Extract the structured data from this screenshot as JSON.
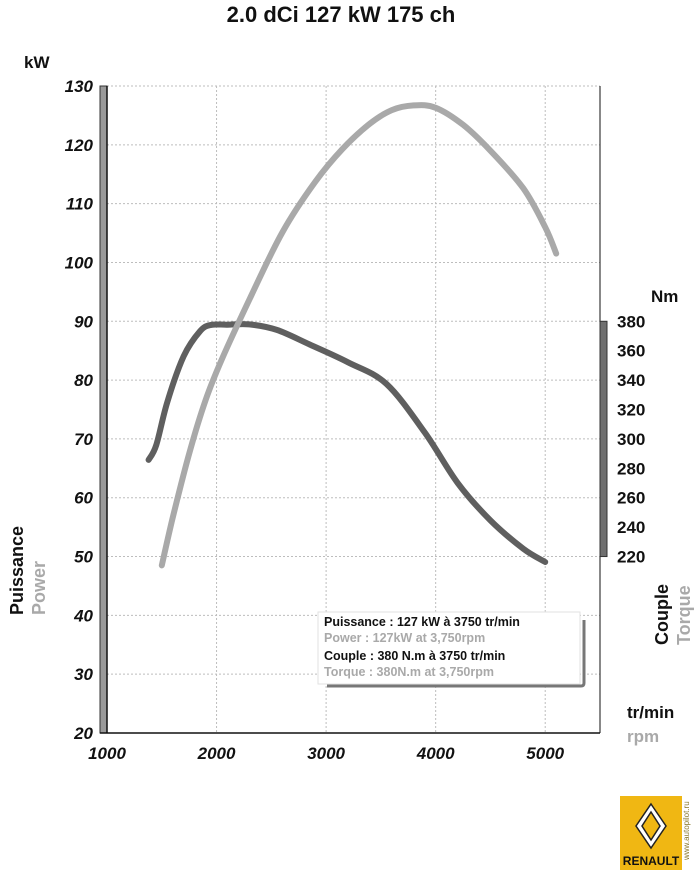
{
  "chart_data": {
    "type": "line",
    "title": "2.0 dCi 127 kW 175 ch",
    "x_unit": "tr/min",
    "x_unit_en": "rpm",
    "x_ticks": [
      1000,
      2000,
      3000,
      4000,
      5000
    ],
    "xlim": [
      1000,
      5500
    ],
    "left_axis": {
      "unit": "kW",
      "label": "Puissance",
      "label_en": "Power",
      "ylim": [
        20,
        130
      ],
      "ticks": [
        20,
        30,
        40,
        50,
        60,
        70,
        80,
        90,
        100,
        110,
        120,
        130
      ]
    },
    "right_axis": {
      "unit": "Nm",
      "label": "Couple",
      "label_en": "Torque",
      "ylim": [
        220,
        380
      ],
      "ticks": [
        220,
        240,
        260,
        280,
        300,
        320,
        340,
        360,
        380
      ]
    },
    "series": [
      {
        "axis": "right",
        "color": "#5f5f5f",
        "x": [
          1380,
          1450,
          1550,
          1700,
          1850,
          1950,
          2100,
          2300,
          2550,
          2850,
          3200,
          3550,
          3900,
          4200,
          4500,
          4800,
          5000
        ],
        "y": [
          285.7,
          295.9,
          325,
          356.3,
          373.3,
          377.5,
          377.7,
          377.9,
          374.1,
          364.2,
          352.1,
          337.4,
          304.4,
          270.1,
          244.6,
          225.3,
          216.3
        ]
      },
      {
        "axis": "left",
        "color": "#a9a9a9",
        "x": [
          1500,
          1600,
          1750,
          1900,
          2050,
          2300,
          2600,
          2900,
          3150,
          3400,
          3600,
          3800,
          4000,
          4250,
          4500,
          4800,
          5000,
          5100
        ],
        "y": [
          48.5,
          56.6,
          67.5,
          76.6,
          83.6,
          93.7,
          105.1,
          113.7,
          119.3,
          123.6,
          125.9,
          126.7,
          126.3,
          123.4,
          119,
          112.6,
          106,
          101.5
        ]
      }
    ],
    "annotation": {
      "lines": [
        "Puissance : 127 kW à 3750 tr/min",
        "Power : 127kW at 3,750rpm",
        "Couple : 380 N.m à 3750 tr/min",
        "Torque : 380N.m at 3,750rpm"
      ]
    },
    "grid": true
  },
  "brand": {
    "name": "RENAULT",
    "watermark": "www.autopilot.ru",
    "color": "#f0b713"
  }
}
